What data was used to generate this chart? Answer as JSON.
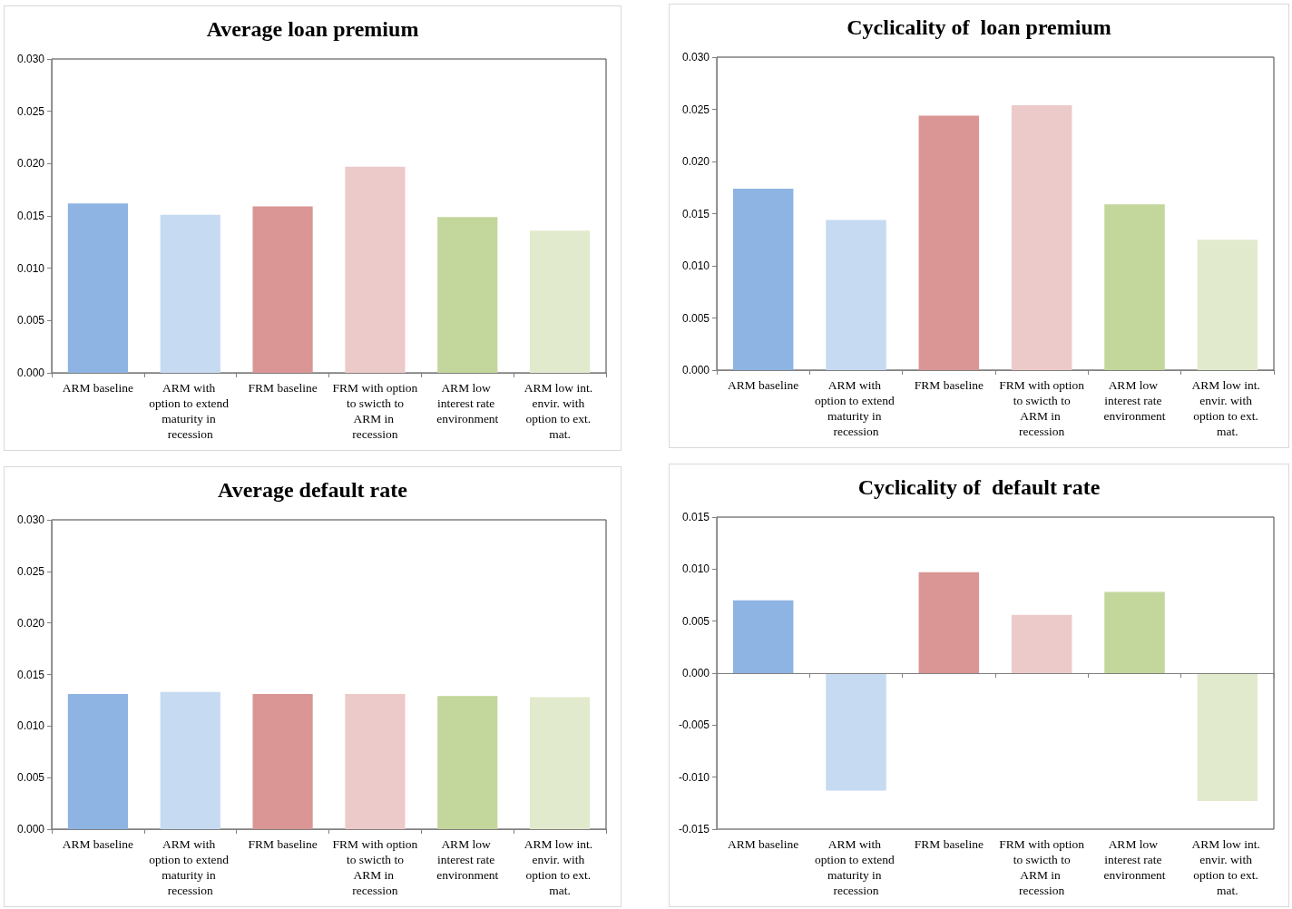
{
  "chart_data": [
    {
      "type": "bar",
      "title": "Average loan premium",
      "categories": [
        "ARM baseline",
        "ARM with option to extend maturity in recession",
        "FRM baseline",
        "FRM with option to swicth to ARM in recession",
        "ARM low interest rate environment",
        "ARM low int. envir. with option to ext. mat."
      ],
      "values": [
        0.0162,
        0.0151,
        0.0159,
        0.0197,
        0.0149,
        0.0136
      ],
      "colors": [
        "#8eb4e3",
        "#c6daf1",
        "#d99694",
        "#eccac9",
        "#c3d69b",
        "#e1eacd"
      ],
      "ylim": [
        0,
        0.03
      ],
      "yticks": [
        {
          "value": 0,
          "label": "0.000"
        },
        {
          "value": 0.005,
          "label": "0.005"
        },
        {
          "value": 0.01,
          "label": "0.010"
        },
        {
          "value": 0.015,
          "label": "0.015"
        },
        {
          "value": 0.02,
          "label": "0.020"
        },
        {
          "value": 0.025,
          "label": "0.025"
        },
        {
          "value": 0.03,
          "label": "0.030"
        }
      ],
      "grid": false
    },
    {
      "type": "bar",
      "title": "Cyclicality of  loan premium",
      "categories": [
        "ARM baseline",
        "ARM with option to extend maturity in recession",
        "FRM baseline",
        "FRM with option to swicth to ARM in recession",
        "ARM low interest rate environment",
        "ARM low int. envir. with option to ext. mat."
      ],
      "values": [
        0.0174,
        0.0144,
        0.0244,
        0.0254,
        0.0159,
        0.0125
      ],
      "colors": [
        "#8eb4e3",
        "#c6daf1",
        "#d99694",
        "#eccac9",
        "#c3d69b",
        "#e1eacd"
      ],
      "ylim": [
        0,
        0.03
      ],
      "yticks": [
        {
          "value": 0,
          "label": "0.000"
        },
        {
          "value": 0.005,
          "label": "0.005"
        },
        {
          "value": 0.01,
          "label": "0.010"
        },
        {
          "value": 0.015,
          "label": "0.015"
        },
        {
          "value": 0.02,
          "label": "0.020"
        },
        {
          "value": 0.025,
          "label": "0.025"
        },
        {
          "value": 0.03,
          "label": "0.030"
        }
      ],
      "grid": false
    },
    {
      "type": "bar",
      "title": "Average default rate",
      "categories": [
        "ARM baseline",
        "ARM with option to extend maturity in recession",
        "FRM baseline",
        "FRM with option to swicth to ARM in recession",
        "ARM low interest rate environment",
        "ARM low int. envir. with option to ext. mat."
      ],
      "values": [
        0.0131,
        0.0133,
        0.0131,
        0.0131,
        0.0129,
        0.0128
      ],
      "colors": [
        "#8eb4e3",
        "#c6daf1",
        "#d99694",
        "#eccac9",
        "#c3d69b",
        "#e1eacd"
      ],
      "ylim": [
        0,
        0.03
      ],
      "yticks": [
        {
          "value": 0,
          "label": "0.000"
        },
        {
          "value": 0.005,
          "label": "0.005"
        },
        {
          "value": 0.01,
          "label": "0.010"
        },
        {
          "value": 0.015,
          "label": "0.015"
        },
        {
          "value": 0.02,
          "label": "0.020"
        },
        {
          "value": 0.025,
          "label": "0.025"
        },
        {
          "value": 0.03,
          "label": "0.030"
        }
      ],
      "grid": false
    },
    {
      "type": "bar",
      "title": "Cyclicality of  default rate",
      "categories": [
        "ARM baseline",
        "ARM with option to extend maturity in recession",
        "FRM baseline",
        "FRM with option to swicth to ARM in recession",
        "ARM low interest rate environment",
        "ARM low int. envir. with option to ext. mat."
      ],
      "values": [
        0.007,
        -0.0113,
        0.0097,
        0.0056,
        0.0078,
        -0.0123
      ],
      "colors": [
        "#8eb4e3",
        "#c6daf1",
        "#d99694",
        "#eccac9",
        "#c3d69b",
        "#e1eacd"
      ],
      "ylim": [
        -0.015,
        0.015
      ],
      "yticks": [
        {
          "value": -0.015,
          "label": "-0.015"
        },
        {
          "value": -0.01,
          "label": "-0.010"
        },
        {
          "value": -0.005,
          "label": "-0.005"
        },
        {
          "value": 0,
          "label": "0.000"
        },
        {
          "value": 0.005,
          "label": "0.005"
        },
        {
          "value": 0.01,
          "label": "0.010"
        },
        {
          "value": 0.015,
          "label": "0.015"
        }
      ],
      "grid": false,
      "ref_lines": [
        {
          "axis": "y",
          "value": 0,
          "color": "#808080"
        }
      ]
    }
  ]
}
